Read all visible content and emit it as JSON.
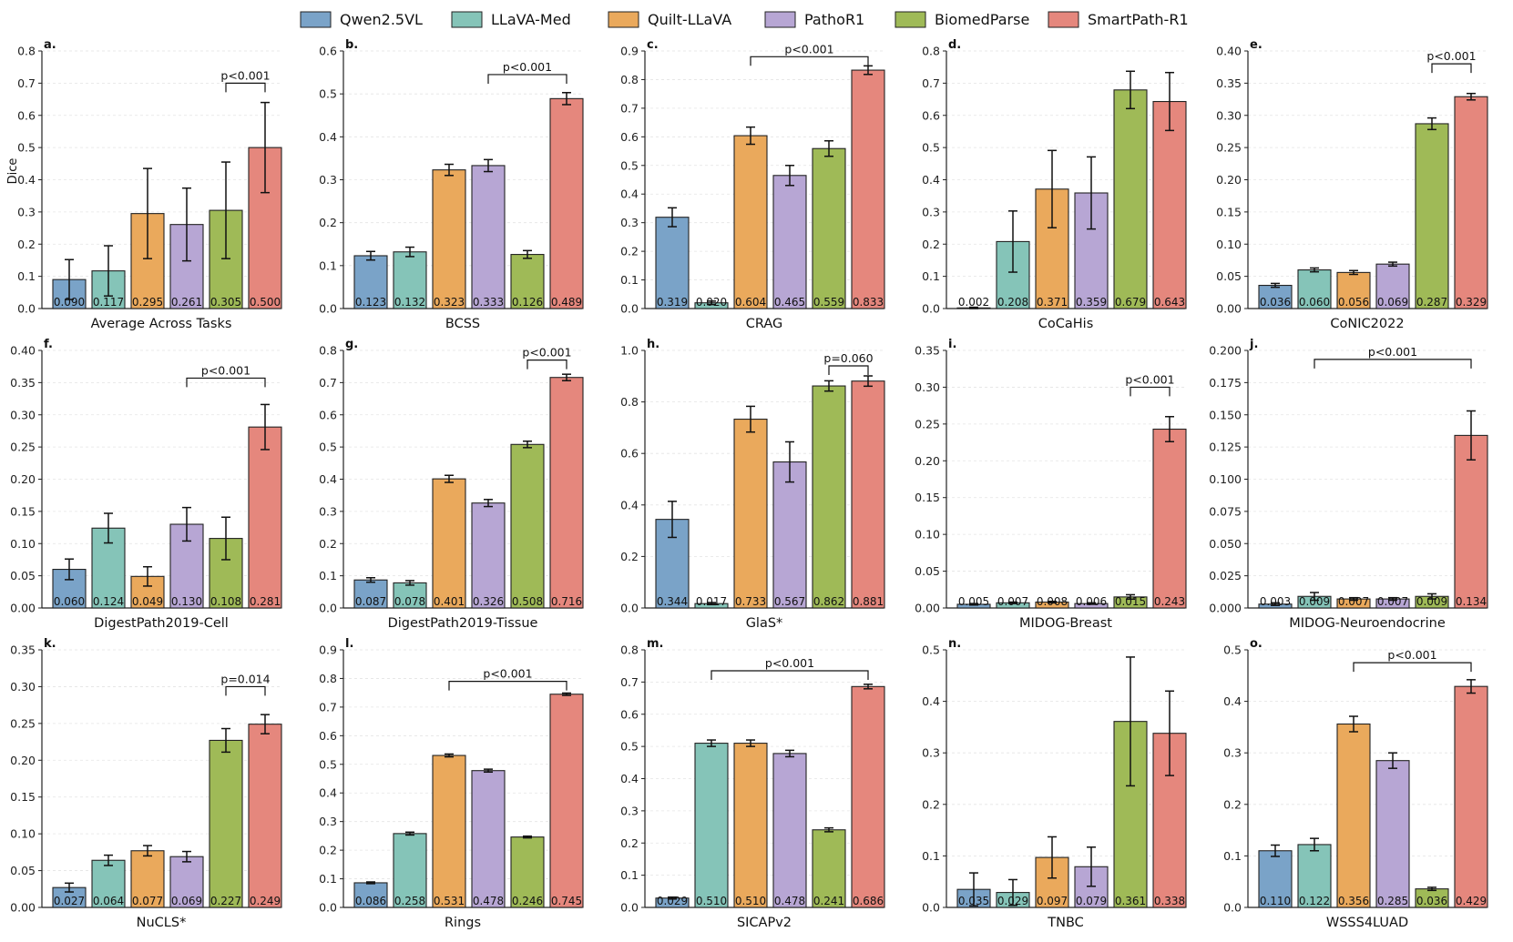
{
  "legend": [
    {
      "name": "Qwen2.5VL",
      "color": "#7aa3c8"
    },
    {
      "name": "LLaVA-Med",
      "color": "#85c4b8"
    },
    {
      "name": "Quilt-LLaVA",
      "color": "#eaa95c"
    },
    {
      "name": "PathoR1",
      "color": "#b7a6d4"
    },
    {
      "name": "BiomedParse",
      "color": "#9fba57"
    },
    {
      "name": "SmartPath-R1",
      "color": "#e5877d"
    }
  ],
  "ylabel": "Dice",
  "chart_data": [
    {
      "type": "bar",
      "letter": "a.",
      "title": "Average Across Tasks",
      "ylim": [
        0,
        0.8
      ],
      "ticks": [
        "0.0",
        "0.1",
        "0.2",
        "0.3",
        "0.4",
        "0.5",
        "0.6",
        "0.7",
        "0.8"
      ],
      "values": [
        0.09,
        0.117,
        0.295,
        0.261,
        0.305,
        0.5
      ],
      "labels": [
        "0.090",
        "0.117",
        "0.295",
        "0.261",
        "0.305",
        "0.500"
      ],
      "errors": [
        0.062,
        0.078,
        0.14,
        0.113,
        0.15,
        0.14
      ],
      "sig": {
        "label": "p<0.001",
        "from": 4,
        "to": 5,
        "y": 0.7
      }
    },
    {
      "type": "bar",
      "letter": "b.",
      "title": "BCSS",
      "ylim": [
        0,
        0.6
      ],
      "ticks": [
        "0.0",
        "0.1",
        "0.2",
        "0.3",
        "0.4",
        "0.5",
        "0.6"
      ],
      "values": [
        0.123,
        0.132,
        0.323,
        0.333,
        0.126,
        0.489
      ],
      "labels": [
        "0.123",
        "0.132",
        "0.323",
        "0.333",
        "0.126",
        "0.489"
      ],
      "errors": [
        0.01,
        0.011,
        0.013,
        0.014,
        0.009,
        0.014
      ],
      "sig": {
        "label": "p<0.001",
        "from": 3,
        "to": 5,
        "y": 0.545
      }
    },
    {
      "type": "bar",
      "letter": "c.",
      "title": "CRAG",
      "ylim": [
        0,
        0.9
      ],
      "ticks": [
        "0.0",
        "0.1",
        "0.2",
        "0.3",
        "0.4",
        "0.5",
        "0.6",
        "0.7",
        "0.8",
        "0.9"
      ],
      "values": [
        0.319,
        0.02,
        0.604,
        0.465,
        0.559,
        0.833
      ],
      "labels": [
        "0.319",
        "0.020",
        "0.604",
        "0.465",
        "0.559",
        "0.833"
      ],
      "errors": [
        0.033,
        0.006,
        0.03,
        0.035,
        0.027,
        0.015
      ],
      "sig": {
        "label": "p<0.001",
        "from": 2,
        "to": 5,
        "y": 0.88
      }
    },
    {
      "type": "bar",
      "letter": "d.",
      "title": "CoCaHis",
      "ylim": [
        0,
        0.8
      ],
      "ticks": [
        "0.0",
        "0.1",
        "0.2",
        "0.3",
        "0.4",
        "0.5",
        "0.6",
        "0.7",
        "0.8"
      ],
      "values": [
        0.002,
        0.208,
        0.371,
        0.359,
        0.679,
        0.643
      ],
      "labels": [
        "0.002",
        "0.208",
        "0.371",
        "0.359",
        "0.679",
        "0.643"
      ],
      "errors": [
        0.002,
        0.095,
        0.12,
        0.112,
        0.058,
        0.09
      ],
      "sig": null
    },
    {
      "type": "bar",
      "letter": "e.",
      "title": "CoNIC2022",
      "ylim": [
        0,
        0.4
      ],
      "ticks": [
        "0.00",
        "0.05",
        "0.10",
        "0.15",
        "0.20",
        "0.25",
        "0.30",
        "0.35",
        "0.40"
      ],
      "values": [
        0.036,
        0.06,
        0.056,
        0.069,
        0.287,
        0.329
      ],
      "labels": [
        "0.036",
        "0.060",
        "0.056",
        "0.069",
        "0.287",
        "0.329"
      ],
      "errors": [
        0.003,
        0.003,
        0.003,
        0.003,
        0.009,
        0.005
      ],
      "sig": {
        "label": "p<0.001",
        "from": 4,
        "to": 5,
        "y": 0.38
      }
    },
    {
      "type": "bar",
      "letter": "f.",
      "title": "DigestPath2019-Cell",
      "ylim": [
        0,
        0.4
      ],
      "ticks": [
        "0.00",
        "0.05",
        "0.10",
        "0.15",
        "0.20",
        "0.25",
        "0.30",
        "0.35",
        "0.40"
      ],
      "values": [
        0.06,
        0.124,
        0.049,
        0.13,
        0.108,
        0.281
      ],
      "labels": [
        "0.060",
        "0.124",
        "0.049",
        "0.130",
        "0.108",
        "0.281"
      ],
      "errors": [
        0.016,
        0.023,
        0.015,
        0.026,
        0.033,
        0.035
      ],
      "sig": {
        "label": "p<0.001",
        "from": 3,
        "to": 5,
        "y": 0.357
      }
    },
    {
      "type": "bar",
      "letter": "g.",
      "title": "DigestPath2019-Tissue",
      "ylim": [
        0,
        0.8
      ],
      "ticks": [
        "0.0",
        "0.1",
        "0.2",
        "0.3",
        "0.4",
        "0.5",
        "0.6",
        "0.7",
        "0.8"
      ],
      "values": [
        0.087,
        0.078,
        0.401,
        0.326,
        0.508,
        0.716
      ],
      "labels": [
        "0.087",
        "0.078",
        "0.401",
        "0.326",
        "0.508",
        "0.716"
      ],
      "errors": [
        0.007,
        0.007,
        0.011,
        0.011,
        0.01,
        0.01
      ],
      "sig": {
        "label": "p<0.001",
        "from": 4,
        "to": 5,
        "y": 0.77
      }
    },
    {
      "type": "bar",
      "letter": "h.",
      "title": "GlaS*",
      "ylim": [
        0,
        1.0
      ],
      "ticks": [
        "0.0",
        "0.2",
        "0.4",
        "0.6",
        "0.8",
        "1.0"
      ],
      "values": [
        0.344,
        0.017,
        0.733,
        0.567,
        0.862,
        0.881
      ],
      "labels": [
        "0.344",
        "0.017",
        "0.733",
        "0.567",
        "0.862",
        "0.881"
      ],
      "errors": [
        0.07,
        0.004,
        0.05,
        0.078,
        0.02,
        0.02
      ],
      "sig": {
        "label": "p=0.060",
        "from": 4,
        "to": 5,
        "y": 0.94
      }
    },
    {
      "type": "bar",
      "letter": "i.",
      "title": "MIDOG-Breast",
      "ylim": [
        0,
        0.35
      ],
      "ticks": [
        "0.00",
        "0.05",
        "0.10",
        "0.15",
        "0.20",
        "0.25",
        "0.30",
        "0.35"
      ],
      "values": [
        0.005,
        0.007,
        0.008,
        0.006,
        0.015,
        0.243
      ],
      "labels": [
        "0.005",
        "0.007",
        "0.008",
        "0.006",
        "0.015",
        "0.243"
      ],
      "errors": [
        0.001,
        0.001,
        0.001,
        0.001,
        0.003,
        0.017
      ],
      "sig": {
        "label": "p<0.001",
        "from": 4,
        "to": 5,
        "y": 0.3
      }
    },
    {
      "type": "bar",
      "letter": "j.",
      "title": "MIDOG-Neuroendocrine",
      "ylim": [
        0,
        0.2
      ],
      "ticks": [
        "0.000",
        "0.025",
        "0.050",
        "0.075",
        "0.100",
        "0.125",
        "0.150",
        "0.175",
        "0.200"
      ],
      "values": [
        0.003,
        0.009,
        0.007,
        0.007,
        0.009,
        0.134
      ],
      "labels": [
        "0.003",
        "0.009",
        "0.007",
        "0.007",
        "0.009",
        "0.134"
      ],
      "errors": [
        0.001,
        0.003,
        0.001,
        0.001,
        0.002,
        0.019
      ],
      "sig": {
        "label": "p<0.001",
        "from": 1,
        "to": 5,
        "y": 0.193
      }
    },
    {
      "type": "bar",
      "letter": "k.",
      "title": "NuCLS*",
      "ylim": [
        0,
        0.35
      ],
      "ticks": [
        "0.00",
        "0.05",
        "0.10",
        "0.15",
        "0.20",
        "0.25",
        "0.30",
        "0.35"
      ],
      "values": [
        0.027,
        0.064,
        0.077,
        0.069,
        0.227,
        0.249
      ],
      "labels": [
        "0.027",
        "0.064",
        "0.077",
        "0.069",
        "0.227",
        "0.249"
      ],
      "errors": [
        0.006,
        0.007,
        0.007,
        0.007,
        0.016,
        0.013
      ],
      "sig": {
        "label": "p=0.014",
        "from": 4,
        "to": 5,
        "y": 0.3
      }
    },
    {
      "type": "bar",
      "letter": "l.",
      "title": "Rings",
      "ylim": [
        0,
        0.9
      ],
      "ticks": [
        "0.0",
        "0.1",
        "0.2",
        "0.3",
        "0.4",
        "0.5",
        "0.6",
        "0.7",
        "0.8",
        "0.9"
      ],
      "values": [
        0.086,
        0.258,
        0.531,
        0.478,
        0.246,
        0.745
      ],
      "labels": [
        "0.086",
        "0.258",
        "0.531",
        "0.478",
        "0.246",
        "0.745"
      ],
      "errors": [
        0.003,
        0.005,
        0.005,
        0.005,
        0.003,
        0.004
      ],
      "sig": {
        "label": "p<0.001",
        "from": 2,
        "to": 5,
        "y": 0.79
      }
    },
    {
      "type": "bar",
      "letter": "m.",
      "title": "SICAPv2",
      "ylim": [
        0,
        0.8
      ],
      "ticks": [
        "0.0",
        "0.1",
        "0.2",
        "0.3",
        "0.4",
        "0.5",
        "0.6",
        "0.7",
        "0.8"
      ],
      "values": [
        0.029,
        0.51,
        0.51,
        0.478,
        0.241,
        0.686
      ],
      "labels": [
        "0.029",
        "0.510",
        "0.510",
        "0.478",
        "0.241",
        "0.686"
      ],
      "errors": [
        0.003,
        0.01,
        0.01,
        0.01,
        0.006,
        0.007
      ],
      "sig": {
        "label": "p<0.001",
        "from": 1,
        "to": 5,
        "y": 0.735
      }
    },
    {
      "type": "bar",
      "letter": "n.",
      "title": "TNBC",
      "ylim": [
        0,
        0.5
      ],
      "ticks": [
        "0.0",
        "0.1",
        "0.2",
        "0.3",
        "0.4",
        "0.5"
      ],
      "values": [
        0.035,
        0.029,
        0.097,
        0.079,
        0.361,
        0.338
      ],
      "labels": [
        "0.035",
        "0.029",
        "0.097",
        "0.079",
        "0.361",
        "0.338"
      ],
      "errors": [
        0.032,
        0.025,
        0.04,
        0.038,
        0.125,
        0.082
      ],
      "sig": null
    },
    {
      "type": "bar",
      "letter": "o.",
      "title": "WSSS4LUAD",
      "ylim": [
        0,
        0.5
      ],
      "ticks": [
        "0.0",
        "0.1",
        "0.2",
        "0.3",
        "0.4",
        "0.5"
      ],
      "values": [
        0.11,
        0.122,
        0.356,
        0.285,
        0.036,
        0.429
      ],
      "labels": [
        "0.110",
        "0.122",
        "0.356",
        "0.285",
        "0.036",
        "0.429"
      ],
      "errors": [
        0.011,
        0.012,
        0.015,
        0.015,
        0.003,
        0.013
      ],
      "sig": {
        "label": "p<0.001",
        "from": 2,
        "to": 5,
        "y": 0.475
      }
    }
  ]
}
